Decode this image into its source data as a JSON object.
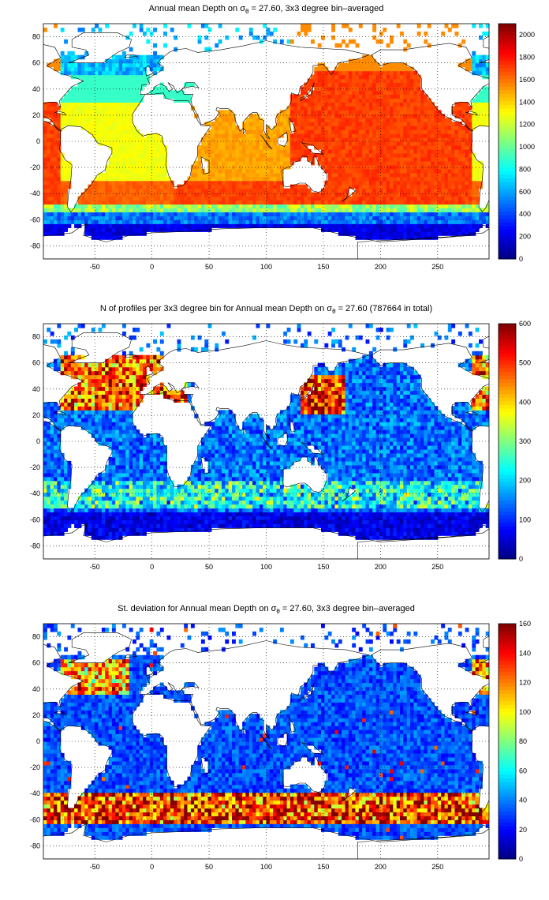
{
  "panels": [
    {
      "title_pre": "Annual mean Depth on ",
      "title_sym": "σ",
      "title_sub": "θ",
      "title_post": " = 27.60, 3x3 degree bin–averaged",
      "colorbar": {
        "min": 0,
        "max": 2100,
        "ticks": [
          0,
          200,
          400,
          600,
          800,
          1000,
          1200,
          1400,
          1600,
          1800,
          2000
        ]
      },
      "kind": "depth"
    },
    {
      "title_pre": "N of profiles per 3x3 degree bin for Annual mean Depth on ",
      "title_sym": "σ",
      "title_sub": "θ",
      "title_post": " = 27.60 (787664 in total)",
      "colorbar": {
        "min": 0,
        "max": 600,
        "ticks": [
          0,
          100,
          200,
          300,
          400,
          500,
          600
        ]
      },
      "kind": "count"
    },
    {
      "title_pre": "St. deviation for Annual mean Depth on ",
      "title_sym": "σ",
      "title_sub": "θ",
      "title_post": " = 27.60, 3x3 degree bin–averaged",
      "colorbar": {
        "min": 0,
        "max": 160,
        "ticks": [
          0,
          20,
          40,
          60,
          80,
          100,
          120,
          140,
          160
        ]
      },
      "kind": "std"
    }
  ],
  "axes": {
    "x_range": [
      -95,
      295
    ],
    "y_range": [
      -90,
      90
    ],
    "x_ticks": [
      -50,
      0,
      50,
      100,
      150,
      200,
      250
    ],
    "y_ticks": [
      -80,
      -60,
      -40,
      -20,
      0,
      20,
      40,
      60,
      80
    ],
    "grid": "dotted"
  }
}
